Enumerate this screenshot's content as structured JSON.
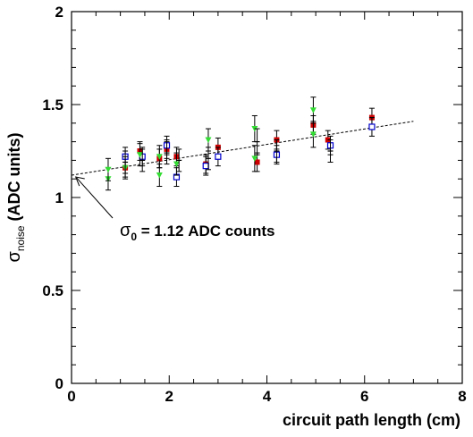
{
  "chart_data": {
    "type": "scatter",
    "xlabel": "circuit path length (cm)",
    "ylabel_main": "σ",
    "ylabel_sub": "noise",
    "ylabel_rest": " (ADC units)",
    "xlim": [
      0,
      8
    ],
    "ylim": [
      0,
      2
    ],
    "xticks": [
      0,
      2,
      4,
      6,
      8
    ],
    "xtick_labels": [
      "0",
      "2",
      "4",
      "6",
      "8"
    ],
    "yticks": [
      0,
      0.5,
      1,
      1.5,
      2
    ],
    "ytick_labels": [
      "0",
      "0.5",
      "1",
      "1.5",
      "2"
    ],
    "grid": false,
    "fit_line": {
      "style": "dashed",
      "x": [
        0,
        7
      ],
      "y": [
        1.12,
        1.41
      ]
    },
    "annotation": {
      "main": "σ",
      "sub": "0",
      "rest": " = 1.12 ADC counts",
      "arrow_to": [
        0.05,
        1.12
      ]
    },
    "series": [
      {
        "marker": "square-filled",
        "color": "#cc0000",
        "points": [
          [
            1.1,
            1.16,
            0.05
          ],
          [
            1.4,
            1.25,
            0.05
          ],
          [
            1.8,
            1.21,
            0.05
          ],
          [
            1.95,
            1.26,
            0.05
          ],
          [
            2.15,
            1.22,
            0.05
          ],
          [
            2.75,
            1.18,
            0.05
          ],
          [
            3.0,
            1.27,
            0.05
          ],
          [
            3.8,
            1.19,
            0.05
          ],
          [
            4.2,
            1.31,
            0.05
          ],
          [
            4.95,
            1.39,
            0.05
          ],
          [
            5.25,
            1.31,
            0.05
          ],
          [
            6.15,
            1.43,
            0.05
          ]
        ]
      },
      {
        "marker": "square-open",
        "color": "#0000cc",
        "points": [
          [
            1.1,
            1.22,
            0.05
          ],
          [
            1.45,
            1.22,
            0.05
          ],
          [
            1.95,
            1.28,
            0.05
          ],
          [
            2.15,
            1.11,
            0.05
          ],
          [
            2.75,
            1.17,
            0.05
          ],
          [
            3.0,
            1.22,
            0.05
          ],
          [
            4.2,
            1.23,
            0.05
          ],
          [
            5.3,
            1.28,
            0.05
          ],
          [
            6.15,
            1.38,
            0.05
          ]
        ]
      },
      {
        "marker": "triangle-down",
        "color": "#33dd33",
        "points": [
          [
            0.75,
            1.1,
            0.06
          ],
          [
            0.75,
            1.15,
            0.06
          ],
          [
            1.1,
            1.16,
            0.06
          ],
          [
            1.4,
            1.23,
            0.06
          ],
          [
            1.8,
            1.12,
            0.06
          ],
          [
            1.8,
            1.22,
            0.06
          ],
          [
            2.15,
            1.18,
            0.06
          ],
          [
            2.8,
            1.31,
            0.06
          ],
          [
            3.75,
            1.21,
            0.07
          ],
          [
            3.75,
            1.37,
            0.07
          ],
          [
            4.95,
            1.34,
            0.07
          ],
          [
            4.95,
            1.47,
            0.07
          ]
        ]
      },
      {
        "marker": "cross-black",
        "color": "#000000",
        "points": [
          [
            1.1,
            1.19,
            0.06
          ],
          [
            1.45,
            1.2,
            0.06
          ],
          [
            1.95,
            1.24,
            0.06
          ],
          [
            2.2,
            1.2,
            0.06
          ],
          [
            2.8,
            1.21,
            0.06
          ],
          [
            3.8,
            1.3,
            0.07
          ],
          [
            4.2,
            1.25,
            0.06
          ],
          [
            5.3,
            1.25,
            0.06
          ]
        ]
      }
    ]
  }
}
